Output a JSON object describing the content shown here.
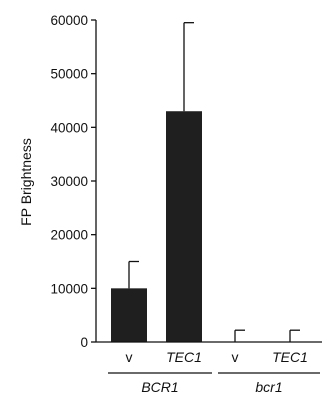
{
  "chart_data": {
    "type": "bar",
    "title": "",
    "ylabel": "FP Brightness",
    "xlabel": "",
    "ylim": [
      0,
      60000
    ],
    "yticks": [
      "0",
      "10000",
      "20000",
      "30000",
      "40000",
      "50000",
      "60000"
    ],
    "categories": [
      {
        "label": "v",
        "italic": false,
        "group": "BCR1"
      },
      {
        "label": "TEC1",
        "italic": true,
        "group": "BCR1"
      },
      {
        "label": "v",
        "italic": false,
        "group": "bcr1"
      },
      {
        "label": "TEC1",
        "italic": true,
        "group": "bcr1"
      }
    ],
    "values": [
      10000,
      43000,
      0,
      0
    ],
    "errors": [
      5000,
      16500,
      2200,
      2200
    ],
    "groups": [
      "BCR1",
      "bcr1"
    ],
    "bar_color": "#1f1f1f"
  }
}
